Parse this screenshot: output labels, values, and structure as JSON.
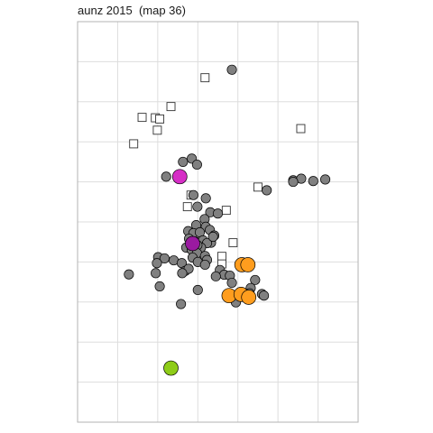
{
  "chart_data": {
    "type": "scatter",
    "title": "aunz 2015  (map 36)",
    "xlabel": "",
    "ylabel": "",
    "xlim": [
      0,
      7
    ],
    "ylim": [
      0,
      10
    ],
    "grid": true,
    "legend": "none",
    "colors": {
      "grey": "#808080",
      "orange": "#ff9d1e",
      "magenta": "#d62ec6",
      "purple": "#9a1aa0",
      "green": "#8ecc18",
      "outline": "#000000",
      "square_fill": "#ffffff",
      "grid": "#dddddd",
      "frame": "#b3b3b3"
    },
    "series": [
      {
        "marker": "circle-small",
        "color": "grey",
        "points": [
          [
            3.85,
            8.8
          ],
          [
            2.63,
            6.5
          ],
          [
            2.85,
            6.58
          ],
          [
            2.98,
            6.43
          ],
          [
            2.21,
            6.13
          ],
          [
            5.38,
            6.04
          ],
          [
            5.58,
            6.08
          ],
          [
            5.88,
            6.02
          ],
          [
            6.18,
            6.06
          ],
          [
            5.38,
            6.0
          ],
          [
            4.72,
            5.79
          ],
          [
            2.89,
            5.67
          ],
          [
            3.2,
            5.59
          ],
          [
            2.99,
            5.38
          ],
          [
            3.31,
            5.24
          ],
          [
            3.5,
            5.21
          ],
          [
            3.17,
            5.07
          ],
          [
            2.96,
            4.92
          ],
          [
            3.2,
            4.88
          ],
          [
            2.76,
            4.77
          ],
          [
            2.89,
            4.72
          ],
          [
            3.05,
            4.74
          ],
          [
            3.3,
            4.8
          ],
          [
            3.41,
            4.66
          ],
          [
            2.78,
            4.58
          ],
          [
            2.95,
            4.5
          ],
          [
            3.13,
            4.54
          ],
          [
            3.33,
            4.48
          ],
          [
            3.23,
            4.47
          ],
          [
            3.08,
            4.36
          ],
          [
            3.38,
            4.63
          ],
          [
            2.99,
            4.42
          ],
          [
            2.71,
            4.36
          ],
          [
            2.85,
            4.3
          ],
          [
            2.98,
            4.22
          ],
          [
            2.01,
            4.12
          ],
          [
            2.17,
            4.09
          ],
          [
            1.98,
            3.97
          ],
          [
            2.4,
            4.04
          ],
          [
            2.87,
            4.11
          ],
          [
            3.18,
            4.15
          ],
          [
            3.23,
            4.05
          ],
          [
            3.0,
            4.0
          ],
          [
            3.18,
            3.93
          ],
          [
            2.6,
            3.97
          ],
          [
            2.69,
            3.78
          ],
          [
            2.77,
            3.83
          ],
          [
            2.61,
            3.72
          ],
          [
            3.55,
            3.8
          ],
          [
            3.66,
            3.68
          ],
          [
            3.8,
            3.66
          ],
          [
            3.45,
            3.64
          ],
          [
            4.43,
            3.55
          ],
          [
            4.6,
            3.2
          ],
          [
            3.0,
            3.3
          ],
          [
            3.85,
            3.48
          ],
          [
            4.32,
            3.35
          ],
          [
            4.29,
            3.22
          ],
          [
            1.28,
            3.69
          ],
          [
            1.95,
            3.72
          ],
          [
            2.05,
            3.39
          ],
          [
            4.65,
            3.16
          ],
          [
            2.58,
            2.95
          ],
          [
            3.95,
            2.99
          ]
        ]
      },
      {
        "marker": "circle-large",
        "color": "orange",
        "points": [
          [
            4.1,
            3.93
          ],
          [
            4.25,
            3.93
          ],
          [
            3.78,
            3.16
          ],
          [
            4.08,
            3.19
          ],
          [
            4.27,
            3.12
          ]
        ]
      },
      {
        "marker": "circle-large",
        "color": "magenta",
        "points": [
          [
            2.55,
            6.13
          ]
        ]
      },
      {
        "marker": "circle-large",
        "color": "purple",
        "points": [
          [
            2.87,
            4.46
          ]
        ]
      },
      {
        "marker": "circle-large",
        "color": "green",
        "points": [
          [
            2.33,
            1.35
          ]
        ]
      },
      {
        "marker": "square",
        "color": "square_fill",
        "points": [
          [
            3.18,
            8.6
          ],
          [
            2.33,
            7.88
          ],
          [
            1.61,
            7.61
          ],
          [
            1.94,
            7.6
          ],
          [
            2.05,
            7.57
          ],
          [
            1.99,
            7.29
          ],
          [
            5.57,
            7.33
          ],
          [
            1.4,
            6.95
          ],
          [
            4.5,
            5.87
          ],
          [
            2.83,
            5.67
          ],
          [
            2.74,
            5.38
          ],
          [
            3.71,
            5.29
          ],
          [
            3.88,
            4.48
          ],
          [
            3.6,
            4.14
          ],
          [
            3.6,
            3.95
          ]
        ]
      }
    ]
  }
}
